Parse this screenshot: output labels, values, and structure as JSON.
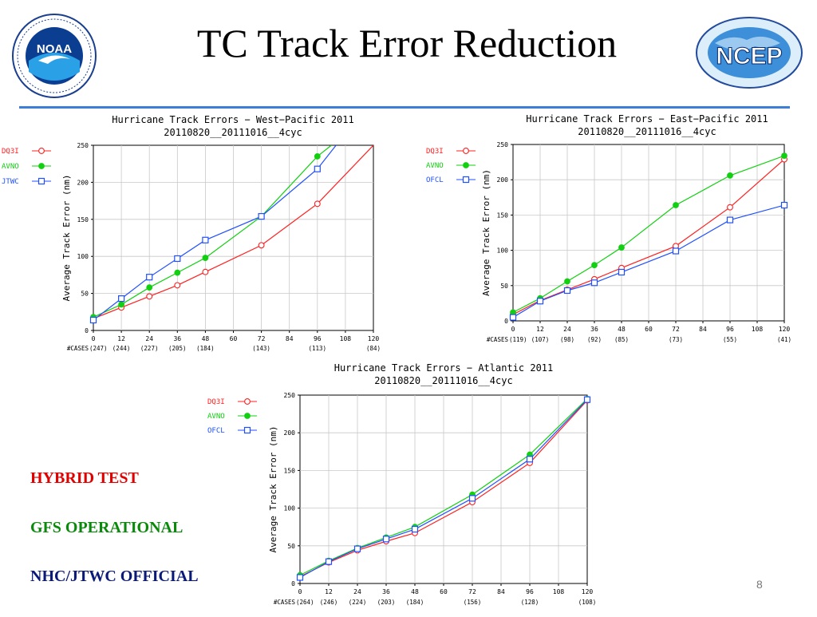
{
  "slide": {
    "title": "TC Track Error Reduction",
    "page_number": "8",
    "logos": {
      "left": "NOAA",
      "right": "NCEP",
      "left_icon": "noaa-logo-icon",
      "right_icon": "ncep-logo-icon"
    },
    "divider_color": "#3d7fd6"
  },
  "legend": {
    "hybrid": "HYBRID TEST",
    "gfs": "GFS OPERATIONAL",
    "nhc": "NHC/JTWC OFFICIAL"
  },
  "colors": {
    "dq3i": "#ff2020",
    "avno": "#10d010",
    "official": "#2050ff"
  },
  "chart_data": [
    {
      "id": "wp",
      "type": "line",
      "title": "Hurricane Track Errors − West−Pacific 2011",
      "subtitle": "20110820__20111016__4cyc",
      "ylabel": "Average Track Error (nm)",
      "ylim": [
        0,
        250
      ],
      "yticks": [
        0,
        50,
        100,
        150,
        200,
        250
      ],
      "xlim": [
        0,
        120
      ],
      "xticks": [
        0,
        12,
        24,
        36,
        48,
        60,
        72,
        84,
        96,
        108,
        120
      ],
      "x": [
        0,
        12,
        24,
        36,
        48,
        72,
        96
      ],
      "cases_label": "#CASES",
      "cases": [
        "(247)",
        "(244)",
        "(227)",
        "(205)",
        "(184)",
        "(143)",
        "(113)",
        "(84)"
      ],
      "cases_x": [
        0,
        12,
        24,
        36,
        48,
        72,
        96,
        120
      ],
      "series": [
        {
          "name": "DQ3I",
          "marker": "circle-open",
          "color": "#ff2020",
          "values": [
            16,
            31,
            46,
            61,
            79,
            115,
            171
          ],
          "tail": [
            120,
            250
          ]
        },
        {
          "name": "AVNO",
          "marker": "circle-filled",
          "color": "#10d010",
          "values": [
            18,
            35,
            58,
            78,
            98,
            154,
            235
          ],
          "tail": [
            102,
            250
          ]
        },
        {
          "name": "JTWC",
          "marker": "square-open",
          "color": "#2050ff",
          "values": [
            14,
            43,
            72,
            97,
            122,
            154,
            218
          ],
          "tail": [
            104,
            250
          ]
        }
      ]
    },
    {
      "id": "ep",
      "type": "line",
      "title": "Hurricane Track Errors − East−Pacific 2011",
      "subtitle": "20110820__20111016__4cyc",
      "ylabel": "Average Track Error (nm)",
      "ylim": [
        0,
        250
      ],
      "yticks": [
        0,
        50,
        100,
        150,
        200,
        250
      ],
      "xlim": [
        0,
        120
      ],
      "xticks": [
        0,
        12,
        24,
        36,
        48,
        60,
        72,
        84,
        96,
        108,
        120
      ],
      "x": [
        0,
        12,
        24,
        36,
        48,
        72,
        96,
        120
      ],
      "cases_label": "#CASES",
      "cases": [
        "(119)",
        "(107)",
        "(98)",
        "(92)",
        "(85)",
        "(73)",
        "(55)",
        "(41)"
      ],
      "cases_x": [
        0,
        12,
        24,
        36,
        48,
        72,
        96,
        120
      ],
      "series": [
        {
          "name": "DQ3I",
          "marker": "circle-open",
          "color": "#ff2020",
          "values": [
            9,
            29,
            44,
            59,
            75,
            106,
            161,
            229
          ]
        },
        {
          "name": "AVNO",
          "marker": "circle-filled",
          "color": "#10d010",
          "values": [
            12,
            32,
            56,
            79,
            104,
            164,
            206,
            234
          ]
        },
        {
          "name": "OFCL",
          "marker": "square-open",
          "color": "#2050ff",
          "values": [
            5,
            28,
            43,
            54,
            69,
            99,
            143,
            164
          ]
        }
      ]
    },
    {
      "id": "atl",
      "type": "line",
      "title": "Hurricane Track Errors − Atlantic 2011",
      "subtitle": "20110820__20111016__4cyc",
      "ylabel": "Average Track Error (nm)",
      "ylim": [
        0,
        250
      ],
      "yticks": [
        0,
        50,
        100,
        150,
        200,
        250
      ],
      "xlim": [
        0,
        120
      ],
      "xticks": [
        0,
        12,
        24,
        36,
        48,
        60,
        72,
        84,
        96,
        108,
        120
      ],
      "x": [
        0,
        12,
        24,
        36,
        48,
        72,
        96,
        120
      ],
      "cases_label": "#CASES",
      "cases": [
        "(264)",
        "(246)",
        "(224)",
        "(203)",
        "(184)",
        "(156)",
        "(128)",
        "(108)"
      ],
      "cases_x": [
        0,
        12,
        24,
        36,
        48,
        72,
        96,
        120
      ],
      "series": [
        {
          "name": "DQ3I",
          "marker": "circle-open",
          "color": "#ff2020",
          "values": [
            9,
            28,
            44,
            56,
            67,
            108,
            160,
            243
          ]
        },
        {
          "name": "AVNO",
          "marker": "circle-filled",
          "color": "#10d010",
          "values": [
            11,
            30,
            47,
            61,
            75,
            118,
            171,
            245
          ]
        },
        {
          "name": "OFCL",
          "marker": "square-open",
          "color": "#2050ff",
          "values": [
            8,
            29,
            46,
            59,
            72,
            113,
            165,
            244
          ]
        }
      ]
    }
  ]
}
